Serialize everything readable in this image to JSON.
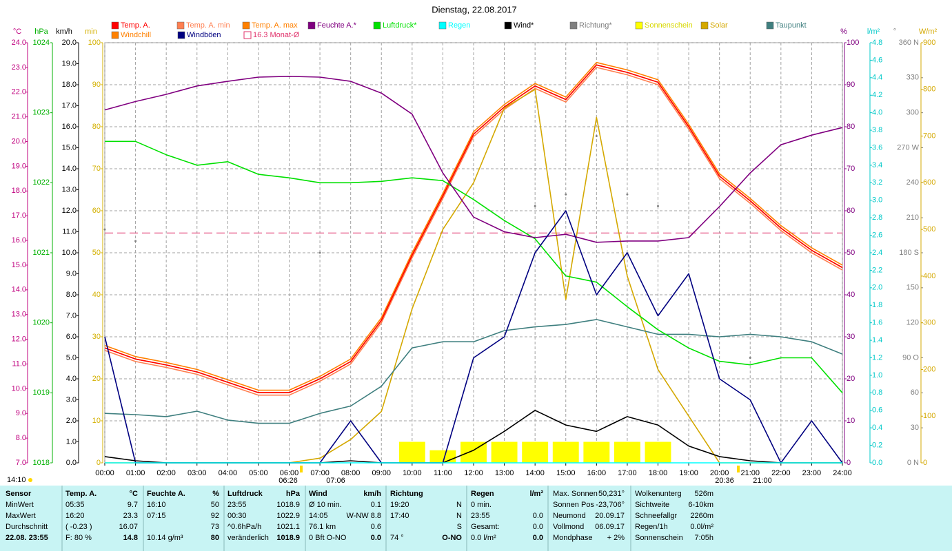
{
  "chart_data": {
    "type": "line",
    "title": "Dienstag, 22.08.2017",
    "time_label": "14:10",
    "annotations": [
      "06:26",
      "07:06",
      "20:36",
      "21:00"
    ],
    "grid": true,
    "xlim": [
      0,
      24
    ],
    "xticks": [
      {
        "value": 0,
        "label": "00:00"
      },
      {
        "value": 1,
        "label": "01:00"
      },
      {
        "value": 2,
        "label": "02:00"
      },
      {
        "value": 3,
        "label": "03:00"
      },
      {
        "value": 4,
        "label": "04:00"
      },
      {
        "value": 5,
        "label": "05:00"
      },
      {
        "value": 6,
        "label": "06:00"
      },
      {
        "value": 7,
        "label": "07:00"
      },
      {
        "value": 8,
        "label": "08:00"
      },
      {
        "value": 9,
        "label": "09:00"
      },
      {
        "value": 10,
        "label": "10:00"
      },
      {
        "value": 11,
        "label": "11:00"
      },
      {
        "value": 12,
        "label": "12:00"
      },
      {
        "value": 13,
        "label": "13:00"
      },
      {
        "value": 14,
        "label": "14:00"
      },
      {
        "value": 15,
        "label": "15:00"
      },
      {
        "value": 16,
        "label": "16:00"
      },
      {
        "value": 17,
        "label": "17:00"
      },
      {
        "value": 18,
        "label": "18:00"
      },
      {
        "value": 19,
        "label": "19:00"
      },
      {
        "value": 20,
        "label": "20:00"
      },
      {
        "value": 21,
        "label": "21:00"
      },
      {
        "value": 22,
        "label": "22:00"
      },
      {
        "value": 23,
        "label": "23:00"
      },
      {
        "value": 24,
        "label": "24:00"
      }
    ],
    "axes": {
      "temp": {
        "label": "°C",
        "color": "#c0007f",
        "lim": [
          7,
          24
        ],
        "ticks": [
          {
            "value": 7,
            "label": "7.0"
          },
          {
            "value": 8,
            "label": "8.0"
          },
          {
            "value": 9,
            "label": "9.0"
          },
          {
            "value": 10,
            "label": "10.0"
          },
          {
            "value": 11,
            "label": "11.0"
          },
          {
            "value": 12,
            "label": "12.0"
          },
          {
            "value": 13,
            "label": "13.0"
          },
          {
            "value": 14,
            "label": "14.0"
          },
          {
            "value": 15,
            "label": "15.0"
          },
          {
            "value": 16,
            "label": "16.0"
          },
          {
            "value": 17,
            "label": "17.0"
          },
          {
            "value": 18,
            "label": "18.0"
          },
          {
            "value": 19,
            "label": "19.0"
          },
          {
            "value": 20,
            "label": "20.0"
          },
          {
            "value": 21,
            "label": "21.0"
          },
          {
            "value": 22,
            "label": "22.0"
          },
          {
            "value": 23,
            "label": "23.0"
          },
          {
            "value": 24,
            "label": "24.0"
          }
        ]
      },
      "press": {
        "label": "hPa",
        "color": "#00b000",
        "lim": [
          1018,
          1024
        ],
        "ticks": [
          1018,
          1019,
          1020,
          1021,
          1022,
          1023,
          1024
        ]
      },
      "wind": {
        "label": "km/h",
        "color": "#000000",
        "lim": [
          0,
          20
        ],
        "ticks": [
          {
            "value": 0,
            "label": "0.0"
          },
          {
            "value": 1,
            "label": "1.0"
          },
          {
            "value": 2,
            "label": "2.0"
          },
          {
            "value": 3,
            "label": "3.0"
          },
          {
            "value": 4,
            "label": "4.0"
          },
          {
            "value": 5,
            "label": "5.0"
          },
          {
            "value": 6,
            "label": "6.0"
          },
          {
            "value": 7,
            "label": "7.0"
          },
          {
            "value": 8,
            "label": "8.0"
          },
          {
            "value": 9,
            "label": "9.0"
          },
          {
            "value": 10,
            "label": "10.0"
          },
          {
            "value": 11,
            "label": "11.0"
          },
          {
            "value": 12,
            "label": "12.0"
          },
          {
            "value": 13,
            "label": "13.0"
          },
          {
            "value": 14,
            "label": "14.0"
          },
          {
            "value": 15,
            "label": "15.0"
          },
          {
            "value": 16,
            "label": "16.0"
          },
          {
            "value": 17,
            "label": "17.0"
          },
          {
            "value": 18,
            "label": "18.0"
          },
          {
            "value": 19,
            "label": "19.0"
          },
          {
            "value": 20,
            "label": "20.0"
          }
        ]
      },
      "min": {
        "label": "min",
        "color": "#d4b000",
        "lim": [
          0,
          100
        ],
        "ticks": [
          0,
          10,
          20,
          30,
          40,
          50,
          60,
          70,
          80,
          90,
          100
        ]
      },
      "hum": {
        "label": "%",
        "color": "#800080",
        "lim": [
          0,
          100
        ],
        "ticks": [
          0,
          10,
          20,
          30,
          40,
          50,
          60,
          70,
          80,
          90,
          100
        ]
      },
      "rain": {
        "label": "l/m²",
        "color": "#00c8c8",
        "lim": [
          0,
          4.8
        ],
        "ticks": [
          {
            "value": 0,
            "label": "0.0"
          },
          0.2,
          0.4,
          0.6,
          0.8,
          {
            "value": 1,
            "label": "1.0"
          },
          1.2,
          1.4,
          1.6,
          1.8,
          {
            "value": 2,
            "label": "2.0"
          },
          2.2,
          2.4,
          2.6,
          2.8,
          {
            "value": 3,
            "label": "3.0"
          },
          3.2,
          3.4,
          3.6,
          3.8,
          {
            "value": 4,
            "label": "4.0"
          },
          4.2,
          4.4,
          4.6,
          4.8
        ]
      },
      "dir": {
        "label": "°",
        "color": "#808080",
        "lim": [
          0,
          360
        ],
        "ticks": [
          {
            "value": 0,
            "label": "0 N"
          },
          30,
          60,
          {
            "value": 90,
            "label": "90 O"
          },
          120,
          150,
          {
            "value": 180,
            "label": "180 S"
          },
          210,
          240,
          {
            "value": 270,
            "label": "270 W"
          },
          300,
          330,
          {
            "value": 360,
            "label": "360 N"
          }
        ]
      },
      "solar": {
        "label": "W/m²",
        "color": "#d4a800",
        "lim": [
          0,
          900
        ],
        "ticks": [
          0,
          100,
          200,
          300,
          400,
          500,
          600,
          700,
          800,
          900
        ]
      }
    },
    "x": [
      0,
      1,
      2,
      3,
      4,
      5,
      6,
      7,
      8,
      9,
      10,
      11,
      12,
      13,
      14,
      15,
      16,
      17,
      18,
      19,
      20,
      21,
      22,
      23,
      24
    ],
    "series": [
      {
        "name": "Temp. A.",
        "color": "#ff0000",
        "axis": "temp",
        "kind": "line",
        "values": [
          11.65,
          11.2,
          10.96,
          10.68,
          10.26,
          9.84,
          9.84,
          10.4,
          11.1,
          12.77,
          15.4,
          17.8,
          20.3,
          21.4,
          22.25,
          21.7,
          23.1,
          22.8,
          22.4,
          20.6,
          18.6,
          17.6,
          16.5,
          15.6,
          14.9
        ]
      },
      {
        "name": "Temp. A. min",
        "color": "#ff7f50",
        "axis": "temp",
        "kind": "line",
        "values": [
          11.55,
          11.1,
          10.86,
          10.58,
          10.16,
          9.74,
          9.74,
          10.3,
          11.0,
          12.67,
          15.3,
          17.7,
          20.2,
          21.3,
          22.15,
          21.6,
          23.0,
          22.7,
          22.3,
          20.5,
          18.5,
          17.5,
          16.4,
          15.5,
          14.8
        ]
      },
      {
        "name": "Temp. A. max",
        "color": "#ff8000",
        "axis": "temp",
        "kind": "line",
        "values": [
          11.75,
          11.3,
          11.06,
          10.78,
          10.36,
          9.94,
          9.94,
          10.5,
          11.2,
          12.87,
          15.5,
          17.9,
          20.4,
          21.5,
          22.35,
          21.8,
          23.2,
          22.9,
          22.5,
          20.7,
          18.7,
          17.7,
          16.6,
          15.7,
          15.0
        ]
      },
      {
        "name": "Feuchte A.*",
        "color": "#800080",
        "axis": "hum",
        "kind": "line",
        "values": [
          84,
          86,
          87.7,
          89.7,
          90.8,
          91.8,
          92,
          91.8,
          90.8,
          88,
          83,
          69,
          58.5,
          55,
          53.6,
          54.4,
          52.5,
          52.8,
          52.8,
          53.6,
          61,
          69,
          75.7,
          78,
          79.8
        ]
      },
      {
        "name": "Luftdruck*",
        "color": "#00e000",
        "axis": "press",
        "kind": "line",
        "values": [
          1022.59,
          1022.59,
          1022.4,
          1022.25,
          1022.3,
          1022.12,
          1022.07,
          1022.0,
          1022.0,
          1022.02,
          1022.07,
          1022.03,
          1021.76,
          1021.46,
          1021.2,
          1020.67,
          1020.58,
          1020.23,
          1019.9,
          1019.64,
          1019.45,
          1019.4,
          1019.5,
          1019.5,
          1019.0
        ]
      },
      {
        "name": "Regen",
        "color": "#00ffff",
        "axis": "rain",
        "kind": "line",
        "values": [
          0,
          0,
          0,
          0,
          0,
          0,
          0,
          0,
          0,
          0,
          0,
          0,
          0,
          0,
          0,
          0,
          0,
          0,
          0,
          0,
          0,
          0,
          0,
          0,
          0
        ]
      },
      {
        "name": "Wind*",
        "color": "#000000",
        "axis": "wind",
        "kind": "line",
        "values": [
          0.3,
          0.1,
          0,
          0,
          0,
          0,
          0,
          0,
          0.1,
          0,
          0,
          0,
          0.6,
          1.5,
          2.5,
          1.8,
          1.5,
          2.2,
          1.8,
          0.8,
          0.3,
          0.1,
          0,
          0,
          0
        ]
      },
      {
        "name": "Richtung*",
        "color": "#808080",
        "axis": "dir",
        "kind": "dots",
        "values": [
          200,
          190,
          null,
          null,
          null,
          null,
          null,
          180,
          null,
          null,
          null,
          null,
          null,
          null,
          220,
          230,
          280,
          230,
          220,
          null,
          null,
          90,
          null,
          null,
          null
        ]
      },
      {
        "name": "Sonnenschein",
        "color": "#ffff00",
        "axis": "min",
        "kind": "bar",
        "values": [
          0,
          0,
          0,
          0,
          0,
          0,
          0,
          0,
          0,
          0,
          5,
          3,
          5,
          5,
          5,
          5,
          5,
          5,
          5,
          0,
          0,
          0,
          0,
          0,
          0
        ]
      },
      {
        "name": "Solar",
        "color": "#d4a800",
        "axis": "solar",
        "kind": "line",
        "values": [
          0,
          0,
          0,
          0,
          0,
          0,
          0,
          10,
          50,
          110,
          330,
          500,
          600,
          760,
          800,
          350,
          740,
          400,
          200,
          100,
          0,
          0,
          0,
          0,
          0
        ]
      },
      {
        "name": "Taupunkt",
        "color": "#3f7f7f",
        "axis": "temp",
        "kind": "line",
        "values": [
          9.0,
          8.95,
          8.87,
          9.09,
          8.73,
          8.6,
          8.6,
          9.0,
          9.3,
          10.1,
          11.65,
          11.9,
          11.9,
          12.35,
          12.5,
          12.6,
          12.8,
          12.5,
          12.2,
          12.2,
          12.1,
          12.2,
          12.1,
          11.9,
          11.4
        ]
      },
      {
        "name": "Windchill",
        "color": "#ff8000",
        "axis": "temp",
        "kind": "line",
        "values": [
          11.65,
          11.2,
          10.96,
          10.68,
          10.26,
          9.84,
          9.84,
          10.4,
          11.1,
          12.77,
          15.4,
          17.8,
          20.3,
          21.4,
          22.25,
          21.7,
          23.1,
          22.8,
          22.4,
          20.6,
          18.6,
          17.6,
          16.5,
          15.6,
          14.9
        ]
      },
      {
        "name": "Windböen",
        "color": "#000080",
        "axis": "wind",
        "kind": "line",
        "values": [
          6.0,
          0,
          0,
          0,
          0,
          0,
          0,
          0,
          2.0,
          0,
          0,
          0,
          5,
          6,
          10,
          12,
          8,
          10,
          7,
          9,
          4,
          3,
          0,
          2,
          0
        ]
      }
    ],
    "reference_line": {
      "name": "16.3 Monat-Ø",
      "value": 16.3,
      "axis": "temp",
      "color": "#e0306a"
    }
  },
  "summary": {
    "row_labels": [
      "Sensor",
      "MinWert",
      "MaxWert",
      "Durchschnitt",
      "22.08. 23:55"
    ],
    "columns": [
      {
        "title": "Temp. A.",
        "unit": "°C",
        "rows": [
          [
            "05:35",
            "9.7"
          ],
          [
            "16:20",
            "23.3"
          ],
          [
            "( -0.23 )",
            "16.07"
          ],
          [
            "F: 80 %",
            "14.8"
          ]
        ]
      },
      {
        "title": "Feuchte A.",
        "unit": "%",
        "rows": [
          [
            "16:10",
            "50"
          ],
          [
            "07:15",
            "92"
          ],
          [
            null,
            "73"
          ],
          [
            "10.14 g/m³",
            "80"
          ]
        ]
      },
      {
        "title": "Luftdruck",
        "unit": "hPa",
        "rows": [
          [
            "23:55",
            "1018.9"
          ],
          [
            "00:30",
            "1022.9"
          ],
          [
            "^0.6hPa/h",
            "1021.1"
          ],
          [
            "veränderlich",
            "1018.9"
          ]
        ]
      },
      {
        "title": "Wind",
        "unit": "km/h",
        "rows": [
          [
            "Ø 10 min.",
            "0.1"
          ],
          [
            "14:05",
            "W-NW 8.8"
          ],
          [
            "76.1 km",
            "0.6"
          ],
          [
            "0 Bft O-NO",
            "0.0"
          ]
        ]
      },
      {
        "title": "Richtung",
        "rows": [
          [
            "19:20",
            "N"
          ],
          [
            "17:40",
            "N"
          ],
          [
            null,
            "S"
          ],
          [
            "74 °",
            "O-NO"
          ]
        ]
      },
      {
        "title": "Regen",
        "unit": "l/m²",
        "rows": [
          [
            "0 min.",
            null
          ],
          [
            "23:55",
            "0.0"
          ],
          [
            "Gesamt:",
            "0.0"
          ],
          [
            "0.0 l/m²",
            "0.0"
          ]
        ]
      }
    ],
    "astro": [
      [
        "Max. Sonnen",
        "50,231°"
      ],
      [
        "Sonnen Pos",
        "-23,706°"
      ],
      [
        "Neumond",
        "20.09.17"
      ],
      [
        "Vollmond",
        "06.09.17"
      ],
      [
        "Mondphase",
        "+ 2%"
      ]
    ],
    "extra": [
      [
        "Wolkenunterg",
        "526m"
      ],
      [
        "Sichtweite",
        "6-10km"
      ],
      [
        "Schneefallgr",
        "2260m"
      ],
      [
        "Regen/1h",
        "0.0l/m²"
      ],
      [
        "Sonnenschein",
        "7:05h"
      ]
    ]
  }
}
